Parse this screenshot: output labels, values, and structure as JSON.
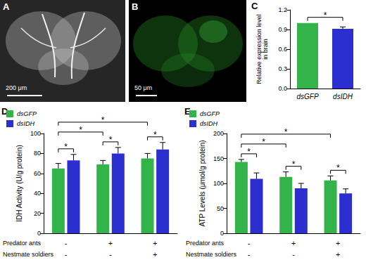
{
  "panels": [
    {
      "panel": "A",
      "scale_bar": "200 μm"
    },
    {
      "panel": "B",
      "scale_bar": "50 μm"
    }
  ],
  "chart_data": [
    {
      "panel": "C",
      "type": "bar",
      "ylabel": "Relative expression level\nin brain",
      "categories": [
        "dsGFP",
        "dsIDH"
      ],
      "values": [
        1.0,
        0.91
      ],
      "errors": [
        0,
        0.03
      ],
      "colors": [
        "#33b44a",
        "#2b2fd0"
      ],
      "ylim": [
        0,
        1.2
      ],
      "yticks": [
        {
          "value": 0,
          "label": "0.0"
        },
        0.3,
        0.6,
        0.9,
        1.2
      ],
      "grid": false,
      "significance": [
        {
          "between": [
            [
              0,
              0
            ],
            [
              1,
              0
            ]
          ],
          "label": "*"
        }
      ]
    },
    {
      "panel": "D",
      "type": "bar",
      "ylabel": "IDH Activity (U/g protein)",
      "categories": [
        null,
        null,
        null
      ],
      "factors": [
        {
          "name": "Predator ants",
          "levels": [
            "-",
            "+",
            "+"
          ]
        },
        {
          "name": "Nestmate soldiers",
          "levels": [
            "-",
            "-",
            "+"
          ]
        }
      ],
      "series": [
        {
          "name": "dsGFP",
          "color": "#33b44a",
          "values": [
            65,
            69,
            75
          ],
          "errors": [
            5,
            4,
            5
          ]
        },
        {
          "name": "dsIDH",
          "color": "#2b2fd0",
          "values": [
            73,
            80,
            84
          ],
          "errors": [
            6,
            6,
            7
          ]
        }
      ],
      "ylim": [
        0,
        100
      ],
      "yticks": [
        0,
        20,
        40,
        60,
        80,
        100
      ],
      "grid": false,
      "legend": "top-left",
      "significance": [
        {
          "between": [
            [
              0,
              0
            ],
            [
              0,
              1
            ]
          ],
          "label": "*"
        },
        {
          "between": [
            [
              1,
              0
            ],
            [
              1,
              1
            ]
          ],
          "label": "*"
        },
        {
          "between": [
            [
              2,
              0
            ],
            [
              2,
              1
            ]
          ],
          "label": "*"
        },
        {
          "between": [
            [
              0,
              0
            ],
            [
              1,
              0
            ]
          ],
          "label": "*"
        },
        {
          "between": [
            [
              0,
              0
            ],
            [
              2,
              0
            ]
          ],
          "label": "*"
        }
      ]
    },
    {
      "panel": "E",
      "type": "bar",
      "ylabel": "ATP Levels (μmol/g protein)",
      "categories": [
        null,
        null,
        null
      ],
      "factors": [
        {
          "name": "Predator ants",
          "levels": [
            "-",
            "+",
            "+"
          ]
        },
        {
          "name": "Nestmate soldiers",
          "levels": [
            "-",
            "-",
            "+"
          ]
        }
      ],
      "series": [
        {
          "name": "dsGFP",
          "color": "#33b44a",
          "values": [
            143,
            113,
            106
          ],
          "errors": [
            5,
            10,
            9
          ]
        },
        {
          "name": "dsIDH",
          "color": "#2b2fd0",
          "values": [
            109,
            90,
            80
          ],
          "errors": [
            12,
            10,
            9
          ]
        }
      ],
      "ylim": [
        0,
        200
      ],
      "yticks": [
        0,
        50,
        100,
        150,
        200
      ],
      "grid": false,
      "legend": "top-left",
      "significance": [
        {
          "between": [
            [
              0,
              0
            ],
            [
              0,
              1
            ]
          ],
          "label": "*"
        },
        {
          "between": [
            [
              1,
              0
            ],
            [
              1,
              1
            ]
          ],
          "label": "*"
        },
        {
          "between": [
            [
              2,
              0
            ],
            [
              2,
              1
            ]
          ],
          "label": "*"
        },
        {
          "between": [
            [
              0,
              0
            ],
            [
              1,
              0
            ]
          ],
          "label": "*"
        },
        {
          "between": [
            [
              0,
              0
            ],
            [
              2,
              0
            ]
          ],
          "label": "*"
        }
      ]
    }
  ]
}
